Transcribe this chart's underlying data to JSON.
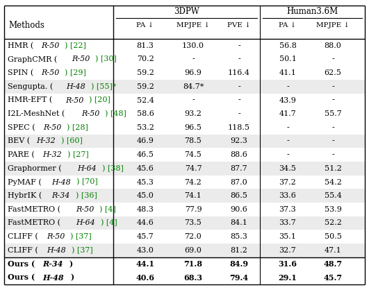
{
  "title_3dpw": "3DPW",
  "title_human": "Human3.6M",
  "rows": [
    {
      "method_parts": [
        [
          "HMR (",
          "normal",
          "black"
        ],
        [
          "R-50",
          "italic",
          "black"
        ],
        [
          ") [22]",
          "normal",
          "green"
        ]
      ],
      "d_pa": "81.3",
      "d_mpjpe": "130.0",
      "d_pve": "-",
      "h_pa": "56.8",
      "h_mpjpe": "88.0",
      "shaded": false,
      "bold": false
    },
    {
      "method_parts": [
        [
          "GraphCMR (",
          "normal",
          "black"
        ],
        [
          "R-50",
          "italic",
          "black"
        ],
        [
          ") [30]",
          "normal",
          "green"
        ]
      ],
      "d_pa": "70.2",
      "d_mpjpe": "-",
      "d_pve": "-",
      "h_pa": "50.1",
      "h_mpjpe": "-",
      "shaded": false,
      "bold": false
    },
    {
      "method_parts": [
        [
          "SPIN (",
          "normal",
          "black"
        ],
        [
          "R-50",
          "italic",
          "black"
        ],
        [
          ") [29]",
          "normal",
          "green"
        ]
      ],
      "d_pa": "59.2",
      "d_mpjpe": "96.9",
      "d_pve": "116.4",
      "h_pa": "41.1",
      "h_mpjpe": "62.5",
      "shaded": false,
      "bold": false
    },
    {
      "method_parts": [
        [
          "Sengupta. (",
          "normal",
          "black"
        ],
        [
          "H-48",
          "italic",
          "black"
        ],
        [
          ") [55]*",
          "normal",
          "green"
        ]
      ],
      "d_pa": "59.2",
      "d_mpjpe": "84.7*",
      "d_pve": "-",
      "h_pa": "-",
      "h_mpjpe": "-",
      "shaded": true,
      "bold": false
    },
    {
      "method_parts": [
        [
          "HMR-EFT (",
          "normal",
          "black"
        ],
        [
          "R-50",
          "italic",
          "black"
        ],
        [
          ") [20]",
          "normal",
          "green"
        ]
      ],
      "d_pa": "52.4",
      "d_mpjpe": "-",
      "d_pve": "-",
      "h_pa": "43.9",
      "h_mpjpe": "-",
      "shaded": false,
      "bold": false
    },
    {
      "method_parts": [
        [
          "I2L-MeshNet (",
          "normal",
          "black"
        ],
        [
          "R-50",
          "italic",
          "black"
        ],
        [
          ") [48]",
          "normal",
          "green"
        ]
      ],
      "d_pa": "58.6",
      "d_mpjpe": "93.2",
      "d_pve": "-",
      "h_pa": "41.7",
      "h_mpjpe": "55.7",
      "shaded": false,
      "bold": false
    },
    {
      "method_parts": [
        [
          "SPEC (",
          "normal",
          "black"
        ],
        [
          "R-50",
          "italic",
          "black"
        ],
        [
          ") [28]",
          "normal",
          "green"
        ]
      ],
      "d_pa": "53.2",
      "d_mpjpe": "96.5",
      "d_pve": "118.5",
      "h_pa": "-",
      "h_mpjpe": "-",
      "shaded": false,
      "bold": false
    },
    {
      "method_parts": [
        [
          "BEV (",
          "normal",
          "black"
        ],
        [
          "H-32",
          "italic",
          "black"
        ],
        [
          ") [60]",
          "normal",
          "green"
        ]
      ],
      "d_pa": "46.9",
      "d_mpjpe": "78.5",
      "d_pve": "92.3",
      "h_pa": "-",
      "h_mpjpe": "-",
      "shaded": true,
      "bold": false
    },
    {
      "method_parts": [
        [
          "PARE (",
          "normal",
          "black"
        ],
        [
          "H-32",
          "italic",
          "black"
        ],
        [
          ") [27]",
          "normal",
          "green"
        ]
      ],
      "d_pa": "46.5",
      "d_mpjpe": "74.5",
      "d_pve": "88.6",
      "h_pa": "-",
      "h_mpjpe": "-",
      "shaded": false,
      "bold": false
    },
    {
      "method_parts": [
        [
          "Graphormer (",
          "normal",
          "black"
        ],
        [
          "H-64",
          "italic",
          "black"
        ],
        [
          ") [38]",
          "normal",
          "green"
        ]
      ],
      "d_pa": "45.6",
      "d_mpjpe": "74.7",
      "d_pve": "87.7",
      "h_pa": "34.5",
      "h_mpjpe": "51.2",
      "shaded": true,
      "bold": false
    },
    {
      "method_parts": [
        [
          "PyMAF (",
          "normal",
          "black"
        ],
        [
          "H-48",
          "italic",
          "black"
        ],
        [
          ") [70]",
          "normal",
          "green"
        ]
      ],
      "d_pa": "45.3",
      "d_mpjpe": "74.2",
      "d_pve": "87.0",
      "h_pa": "37.2",
      "h_mpjpe": "54.2",
      "shaded": false,
      "bold": false
    },
    {
      "method_parts": [
        [
          "HybrIK (",
          "normal",
          "black"
        ],
        [
          "R-34",
          "italic",
          "black"
        ],
        [
          ") [36]",
          "normal",
          "green"
        ]
      ],
      "d_pa": "45.0",
      "d_mpjpe": "74.1",
      "d_pve": "86.5",
      "h_pa": "33.6",
      "h_mpjpe": "55.4",
      "shaded": true,
      "bold": false
    },
    {
      "method_parts": [
        [
          "FastMETRO (",
          "normal",
          "black"
        ],
        [
          "R-50",
          "italic",
          "black"
        ],
        [
          ") [4]",
          "normal",
          "green"
        ]
      ],
      "d_pa": "48.3",
      "d_mpjpe": "77.9",
      "d_pve": "90.6",
      "h_pa": "37.3",
      "h_mpjpe": "53.9",
      "shaded": false,
      "bold": false
    },
    {
      "method_parts": [
        [
          "FastMETRO (",
          "normal",
          "black"
        ],
        [
          "H-64",
          "italic",
          "black"
        ],
        [
          ") [4]",
          "normal",
          "green"
        ]
      ],
      "d_pa": "44.6",
      "d_mpjpe": "73.5",
      "d_pve": "84.1",
      "h_pa": "33.7",
      "h_mpjpe": "52.2",
      "shaded": true,
      "bold": false
    },
    {
      "method_parts": [
        [
          "CLIFF (",
          "normal",
          "black"
        ],
        [
          "R-50",
          "italic",
          "black"
        ],
        [
          ") [37]",
          "normal",
          "green"
        ]
      ],
      "d_pa": "45.7",
      "d_mpjpe": "72.0",
      "d_pve": "85.3",
      "h_pa": "35.1",
      "h_mpjpe": "50.5",
      "shaded": false,
      "bold": false
    },
    {
      "method_parts": [
        [
          "CLIFF (",
          "normal",
          "black"
        ],
        [
          "H-48",
          "italic",
          "black"
        ],
        [
          ") [37]",
          "normal",
          "green"
        ]
      ],
      "d_pa": "43.0",
      "d_mpjpe": "69.0",
      "d_pve": "81.2",
      "h_pa": "32.7",
      "h_mpjpe": "47.1",
      "shaded": true,
      "bold": false
    },
    {
      "method_parts": [
        [
          "Ours (",
          "normal",
          "black"
        ],
        [
          "R-34",
          "italic",
          "black"
        ],
        [
          ")",
          "normal",
          "black"
        ]
      ],
      "d_pa": "44.1",
      "d_mpjpe": "71.8",
      "d_pve": "84.9",
      "h_pa": "31.6",
      "h_mpjpe": "48.7",
      "shaded": false,
      "bold": true
    },
    {
      "method_parts": [
        [
          "Ours (",
          "normal",
          "black"
        ],
        [
          "H-48",
          "italic",
          "black"
        ],
        [
          ")",
          "normal",
          "black"
        ]
      ],
      "d_pa": "40.6",
      "d_mpjpe": "68.3",
      "d_pve": "79.4",
      "h_pa": "29.1",
      "h_mpjpe": "45.7",
      "shaded": false,
      "bold": true
    }
  ],
  "bg_color": "#ffffff",
  "shade_color": "#ebebeb",
  "green_color": "#22bb22",
  "border_lw": 1.0,
  "font_size": 8.0,
  "header_font_size": 8.5
}
